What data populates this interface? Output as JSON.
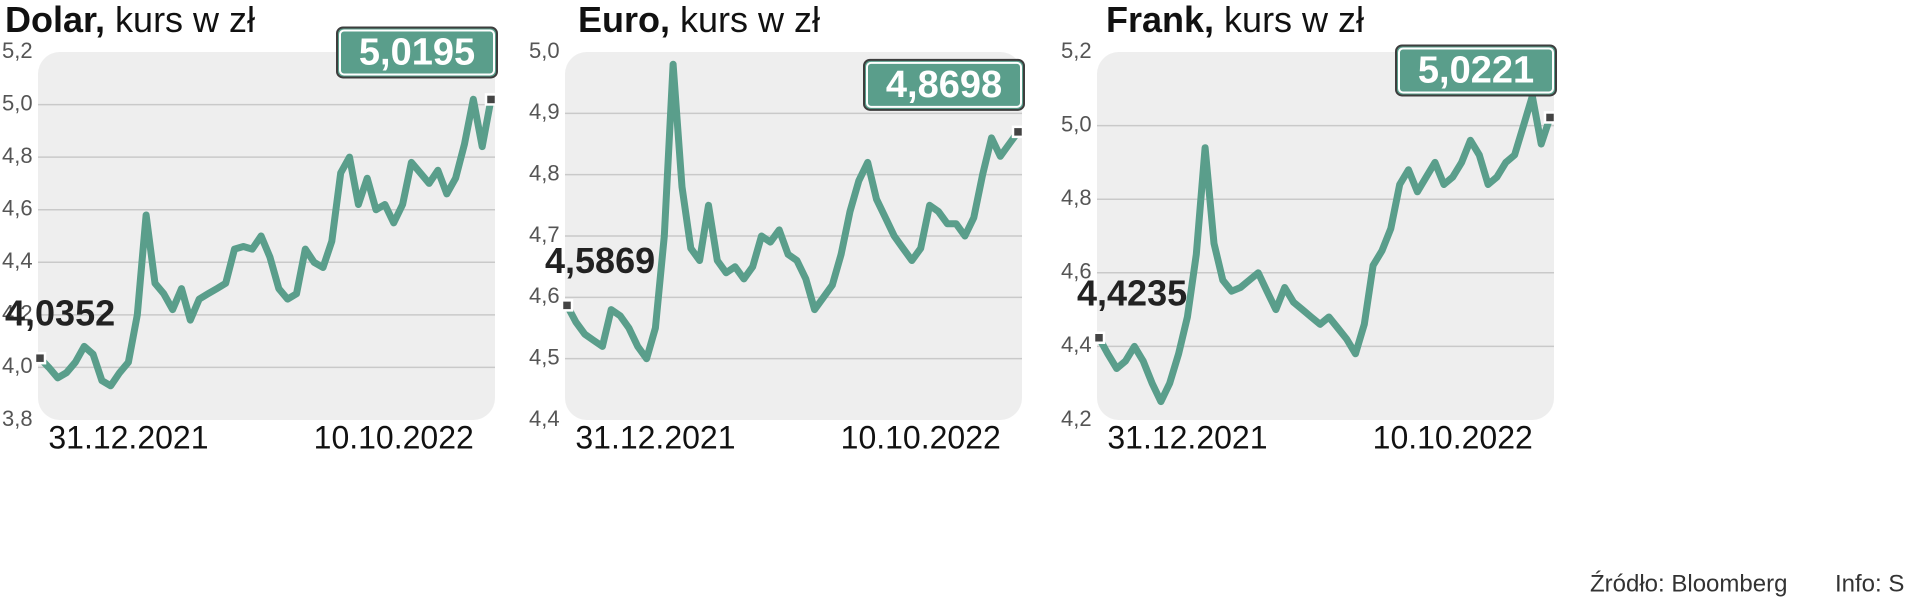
{
  "chart_data": [
    {
      "type": "line",
      "title": "Dolar,",
      "subtitle": "kurs w zł",
      "color": "#5a9e8b",
      "grid": true,
      "ylim": [
        3.8,
        5.2
      ],
      "yticks": [
        {
          "value": 3.8,
          "label": "3,8"
        },
        {
          "value": 4.0,
          "label": "4,0"
        },
        {
          "value": 4.2,
          "label": "4,2"
        },
        {
          "value": 4.4,
          "label": "4,4"
        },
        {
          "value": 4.6,
          "label": "4,6"
        },
        {
          "value": 4.8,
          "label": "4,8"
        },
        {
          "value": 5.0,
          "label": "5,0"
        },
        {
          "value": 5.2,
          "label": "5,2"
        }
      ],
      "categories": [
        null,
        null,
        null,
        null,
        null,
        null,
        null,
        null,
        null,
        null,
        "31.12.2021",
        null,
        null,
        null,
        null,
        null,
        null,
        null,
        null,
        null,
        null,
        null,
        null,
        null,
        null,
        null,
        null,
        null,
        null,
        null,
        null,
        null,
        null,
        null,
        null,
        null,
        null,
        null,
        null,
        null,
        "10.10.2022",
        null,
        null,
        null,
        null,
        null,
        null,
        null,
        null,
        null,
        null,
        null
      ],
      "values": [
        4.0352,
        4.0,
        3.96,
        3.98,
        4.02,
        4.08,
        4.05,
        3.95,
        3.93,
        3.98,
        4.02,
        4.2,
        4.58,
        4.32,
        4.28,
        4.22,
        4.3,
        4.18,
        4.26,
        4.28,
        4.3,
        4.32,
        4.45,
        4.46,
        4.45,
        4.5,
        4.42,
        4.3,
        4.26,
        4.28,
        4.45,
        4.4,
        4.38,
        4.48,
        4.74,
        4.8,
        4.62,
        4.72,
        4.6,
        4.62,
        4.55,
        4.62,
        4.78,
        4.74,
        4.7,
        4.75,
        4.66,
        4.72,
        4.85,
        5.02,
        4.84,
        5.0195
      ],
      "value_labels": [
        "4,0352",
        null,
        null,
        null,
        null,
        null,
        null,
        null,
        null,
        null,
        null,
        null,
        null,
        null,
        null,
        null,
        null,
        null,
        null,
        null,
        null,
        null,
        null,
        null,
        null,
        null,
        null,
        null,
        null,
        null,
        null,
        null,
        null,
        null,
        null,
        null,
        null,
        null,
        null,
        null,
        null,
        null,
        null,
        null,
        null,
        null,
        null,
        null,
        null,
        null,
        null,
        "5,0195"
      ]
    },
    {
      "type": "line",
      "title": "Euro,",
      "subtitle": "kurs w zł",
      "color": "#5a9e8b",
      "grid": true,
      "ylim": [
        4.4,
        5.0
      ],
      "yticks": [
        {
          "value": 4.4,
          "label": "4,4"
        },
        {
          "value": 4.5,
          "label": "4,5"
        },
        {
          "value": 4.6,
          "label": "4,6"
        },
        {
          "value": 4.7,
          "label": "4,7"
        },
        {
          "value": 4.8,
          "label": "4,8"
        },
        {
          "value": 4.9,
          "label": "4,9"
        },
        {
          "value": 5.0,
          "label": "5,0"
        }
      ],
      "categories": [
        null,
        null,
        null,
        null,
        null,
        null,
        null,
        null,
        null,
        null,
        "31.12.2021",
        null,
        null,
        null,
        null,
        null,
        null,
        null,
        null,
        null,
        null,
        null,
        null,
        null,
        null,
        null,
        null,
        null,
        null,
        null,
        null,
        null,
        null,
        null,
        null,
        null,
        null,
        null,
        null,
        null,
        "10.10.2022",
        null,
        null,
        null,
        null,
        null,
        null,
        null,
        null,
        null,
        null,
        null
      ],
      "values": [
        4.5869,
        4.56,
        4.54,
        4.53,
        4.52,
        4.58,
        4.57,
        4.55,
        4.52,
        4.5,
        4.55,
        4.7,
        4.98,
        4.78,
        4.68,
        4.66,
        4.75,
        4.66,
        4.64,
        4.65,
        4.63,
        4.65,
        4.7,
        4.69,
        4.71,
        4.67,
        4.66,
        4.63,
        4.58,
        4.6,
        4.62,
        4.67,
        4.74,
        4.79,
        4.82,
        4.76,
        4.73,
        4.7,
        4.68,
        4.66,
        4.68,
        4.75,
        4.74,
        4.72,
        4.72,
        4.7,
        4.73,
        4.8,
        4.86,
        4.83,
        4.85,
        4.8698
      ],
      "value_labels": [
        "4,5869",
        null,
        null,
        null,
        null,
        null,
        null,
        null,
        null,
        null,
        null,
        null,
        null,
        null,
        null,
        null,
        null,
        null,
        null,
        null,
        null,
        null,
        null,
        null,
        null,
        null,
        null,
        null,
        null,
        null,
        null,
        null,
        null,
        null,
        null,
        null,
        null,
        null,
        null,
        null,
        null,
        null,
        null,
        null,
        null,
        null,
        null,
        null,
        null,
        null,
        null,
        "4,8698"
      ]
    },
    {
      "type": "line",
      "title": "Frank,",
      "subtitle": "kurs w zł",
      "color": "#5a9e8b",
      "grid": true,
      "ylim": [
        4.2,
        5.2
      ],
      "yticks": [
        {
          "value": 4.2,
          "label": "4,2"
        },
        {
          "value": 4.4,
          "label": "4,4"
        },
        {
          "value": 4.6,
          "label": "4,6"
        },
        {
          "value": 4.8,
          "label": "4,8"
        },
        {
          "value": 5.0,
          "label": "5,0"
        },
        {
          "value": 5.2,
          "label": "5,2"
        }
      ],
      "categories": [
        null,
        null,
        null,
        null,
        null,
        null,
        null,
        null,
        null,
        null,
        "31.12.2021",
        null,
        null,
        null,
        null,
        null,
        null,
        null,
        null,
        null,
        null,
        null,
        null,
        null,
        null,
        null,
        null,
        null,
        null,
        null,
        null,
        null,
        null,
        null,
        null,
        null,
        null,
        null,
        null,
        null,
        "10.10.2022",
        null,
        null,
        null,
        null,
        null,
        null,
        null,
        null,
        null,
        null,
        null
      ],
      "values": [
        4.4235,
        4.38,
        4.34,
        4.36,
        4.4,
        4.36,
        4.3,
        4.25,
        4.3,
        4.38,
        4.48,
        4.65,
        4.94,
        4.68,
        4.58,
        4.55,
        4.56,
        4.58,
        4.6,
        4.55,
        4.5,
        4.56,
        4.52,
        4.5,
        4.48,
        4.46,
        4.48,
        4.45,
        4.42,
        4.38,
        4.46,
        4.62,
        4.66,
        4.72,
        4.84,
        4.88,
        4.82,
        4.86,
        4.9,
        4.84,
        4.86,
        4.9,
        4.96,
        4.92,
        4.84,
        4.86,
        4.9,
        4.92,
        5.0,
        5.08,
        4.95,
        5.0221
      ],
      "value_labels": [
        "4,4235",
        null,
        null,
        null,
        null,
        null,
        null,
        null,
        null,
        null,
        null,
        null,
        null,
        null,
        null,
        null,
        null,
        null,
        null,
        null,
        null,
        null,
        null,
        null,
        null,
        null,
        null,
        null,
        null,
        null,
        null,
        null,
        null,
        null,
        null,
        null,
        null,
        null,
        null,
        null,
        null,
        null,
        null,
        null,
        null,
        null,
        null,
        null,
        null,
        null,
        null,
        "5,0221"
      ]
    }
  ],
  "source": "Źródło: Bloomberg",
  "credit": "Info: S"
}
